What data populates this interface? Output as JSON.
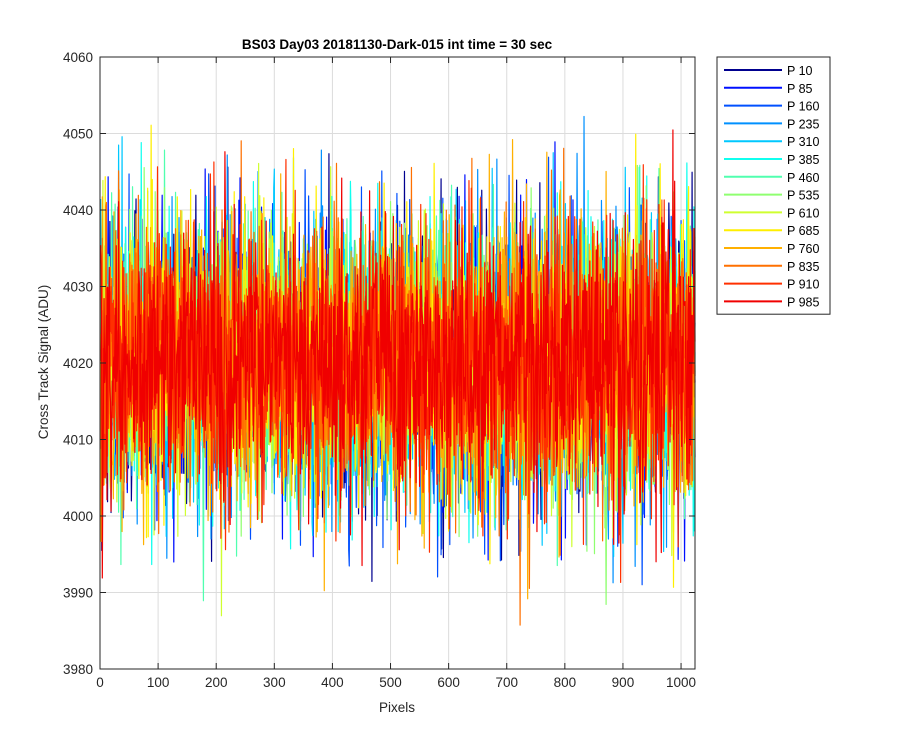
{
  "chart_data": {
    "type": "line",
    "title": "BS03 Day03 20181130-Dark-015 int time = 30 sec",
    "xlabel": "Pixels",
    "ylabel": "Cross Track Signal (ADU)",
    "xlim": [
      0,
      1024
    ],
    "ylim": [
      3980,
      4060
    ],
    "x_ticks": [
      0,
      100,
      200,
      300,
      400,
      500,
      600,
      700,
      800,
      900,
      1000
    ],
    "y_ticks": [
      3980,
      3990,
      4000,
      4010,
      4020,
      4030,
      4040,
      4050,
      4060
    ],
    "grid": true,
    "legend_position": "outside-top-right",
    "x": "pixels 1 to 1024, one sample per pixel",
    "noise_mean": 4020,
    "noise_stddev": 9,
    "series": [
      {
        "name": "P 10",
        "color": "#00008f"
      },
      {
        "name": "P 85",
        "color": "#0010ff"
      },
      {
        "name": "P 160",
        "color": "#0050ff"
      },
      {
        "name": "P 235",
        "color": "#0090ff"
      },
      {
        "name": "P 310",
        "color": "#00c8ff"
      },
      {
        "name": "P 385",
        "color": "#10ffef"
      },
      {
        "name": "P 460",
        "color": "#50ffaf"
      },
      {
        "name": "P 535",
        "color": "#8fff70"
      },
      {
        "name": "P 610",
        "color": "#cfff30"
      },
      {
        "name": "P 685",
        "color": "#ffef00"
      },
      {
        "name": "P 760",
        "color": "#ffb000"
      },
      {
        "name": "P 835",
        "color": "#ff7000"
      },
      {
        "name": "P 910",
        "color": "#ff3000"
      },
      {
        "name": "P 985",
        "color": "#f00000"
      }
    ]
  }
}
